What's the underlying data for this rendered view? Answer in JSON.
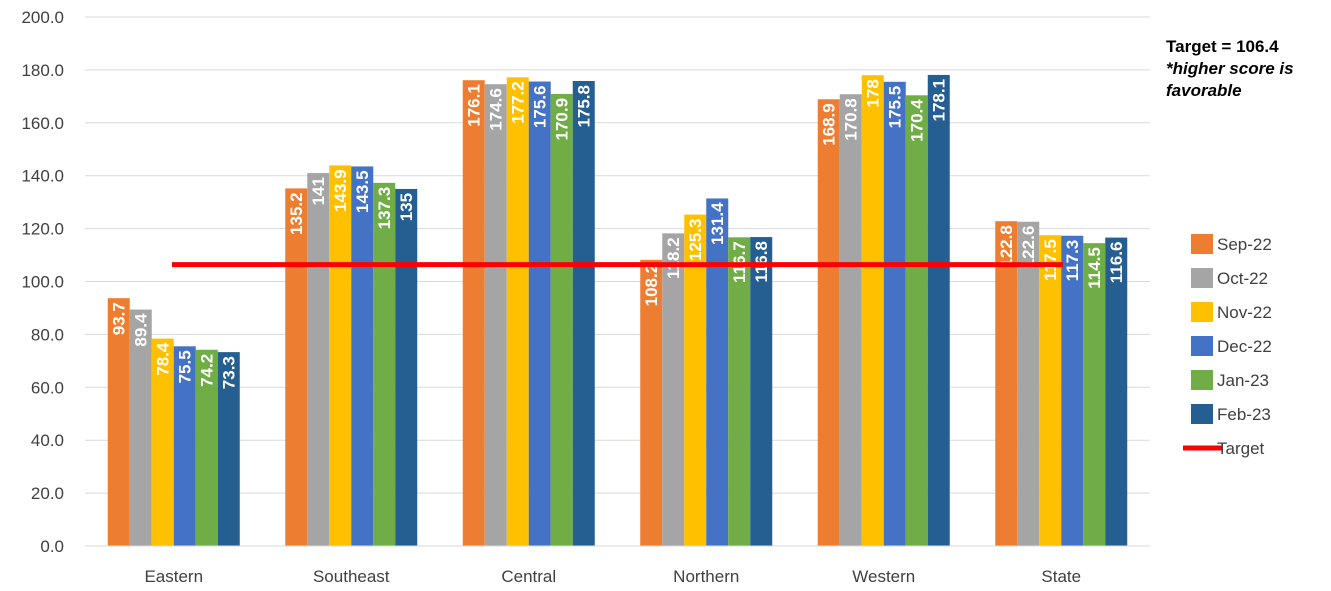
{
  "chart_data": {
    "type": "bar",
    "categories": [
      "Eastern",
      "Southeast",
      "Central",
      "Northern",
      "Western",
      "State"
    ],
    "series": [
      {
        "name": "Sep-22",
        "color": "#ED7D31",
        "values": [
          93.7,
          135.2,
          176.1,
          108.2,
          168.9,
          122.8
        ],
        "labels": [
          "93.7",
          "135.2",
          "176.1",
          "108.2",
          "168.9",
          "122.8"
        ]
      },
      {
        "name": "Oct-22",
        "color": "#A5A5A5",
        "values": [
          89.4,
          141,
          174.6,
          118.2,
          170.8,
          122.6
        ],
        "labels": [
          "89.4",
          "141",
          "174.6",
          "118.2",
          "170.8",
          "122.6"
        ]
      },
      {
        "name": "Nov-22",
        "color": "#FFC000",
        "values": [
          78.4,
          143.9,
          177.2,
          125.3,
          178,
          117.5
        ],
        "labels": [
          "78.4",
          "143.9",
          "177.2",
          "125.3",
          "178",
          "117.5"
        ]
      },
      {
        "name": "Dec-22",
        "color": "#4472C4",
        "values": [
          75.5,
          143.5,
          175.6,
          131.4,
          175.5,
          117.3
        ],
        "labels": [
          "75.5",
          "143.5",
          "175.6",
          "131.4",
          "175.5",
          "117.3"
        ]
      },
      {
        "name": "Jan-23",
        "color": "#70AD47",
        "values": [
          74.2,
          137.3,
          170.9,
          116.7,
          170.4,
          114.5
        ],
        "labels": [
          "74.2",
          "137.3",
          "170.9",
          "116.7",
          "170.4",
          "114.5"
        ]
      },
      {
        "name": "Feb-23",
        "color": "#255E91",
        "values": [
          73.3,
          135,
          175.8,
          116.8,
          178.1,
          116.6
        ],
        "labels": [
          "73.3",
          "135",
          "175.8",
          "116.8",
          "178.1",
          "116.6"
        ]
      }
    ],
    "target": {
      "name": "Target",
      "value": 106.4,
      "color": "#FF0000"
    },
    "y_ticks": [
      "0.0",
      "20.0",
      "40.0",
      "60.0",
      "80.0",
      "100.0",
      "120.0",
      "140.0",
      "160.0",
      "180.0",
      "200.0"
    ],
    "ylim": [
      0,
      200
    ],
    "grid": true,
    "legend_position": "right",
    "title": "",
    "xlabel": "",
    "ylabel": ""
  },
  "annotation": {
    "target_text": "Target = 106.4",
    "note_text": "*higher score is favorable"
  }
}
